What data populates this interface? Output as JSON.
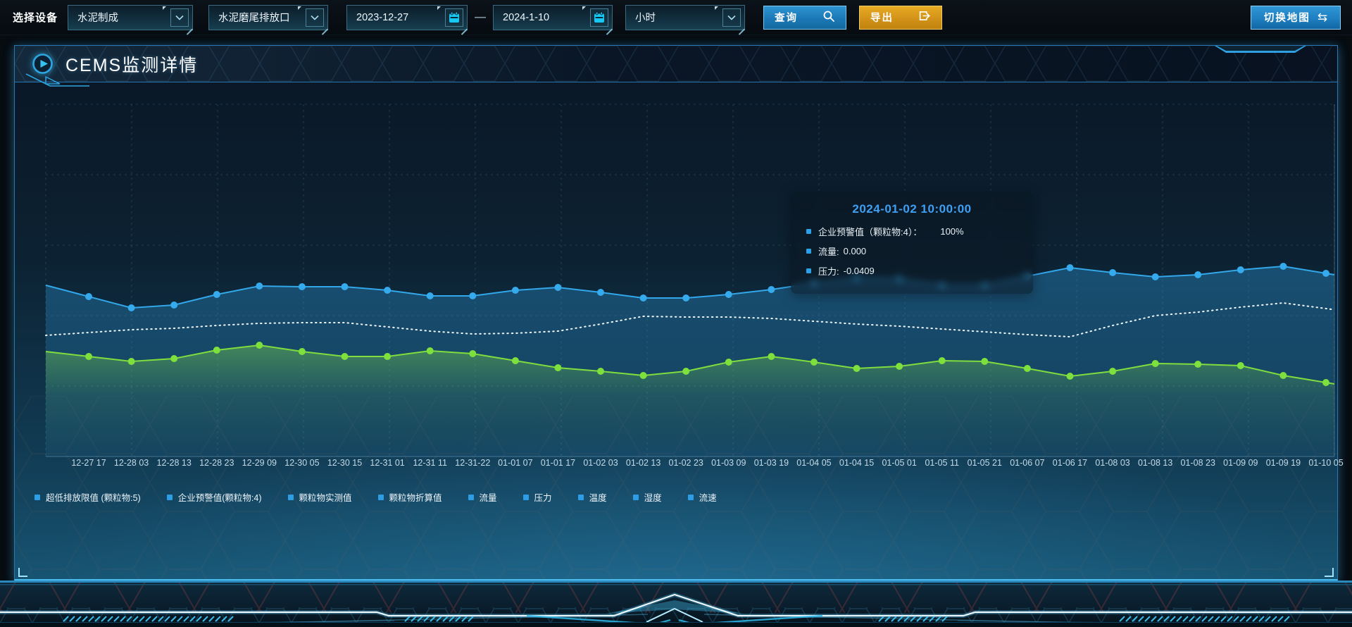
{
  "toolbar": {
    "device_label": "选择设备",
    "device_type_select": {
      "value": "水泥制成"
    },
    "outlet_select": {
      "value": "水泥磨尾排放口"
    },
    "date_from": "2023-12-27",
    "date_separator": "—",
    "date_to": "2024-1-10",
    "interval_select": {
      "value": "小时"
    },
    "query_button": "查询",
    "export_button": "导出",
    "switch_map_button": "切换地图"
  },
  "panel": {
    "title": "CEMS监测详情"
  },
  "tooltip": {
    "title": "2024-01-02 10:00:00",
    "rows": [
      {
        "label": "企业预警值（颗粒物:4）：",
        "value": "100%"
      },
      {
        "label": "流量:",
        "value": "0.000"
      },
      {
        "label": "压力:",
        "value": "-0.0409"
      }
    ]
  },
  "legend": [
    "超低排放限值 (颗粒物:5)",
    "企业预警值(颗粒物:4)",
    "颗粒物实测值",
    "颗粒物折算值",
    "流量",
    "压力",
    "温度",
    "湿度",
    "流速"
  ],
  "icons": {
    "chevron-down": "∨",
    "swap-arrows": "⇆",
    "calendar": "cyan calendar glyph",
    "search": "magnifier glyph",
    "export": "box with right arrow glyph",
    "play": "circled play triangle"
  },
  "colors": {
    "series_blue": "#32a7ea",
    "series_green": "#7fdd3e",
    "series_white_dotted": "#eef6fa",
    "legend_marker": "#2d9ee6",
    "tooltip_title_blue": "#3f9ff2",
    "query_button_blue": "#1b78b6",
    "export_button_orange": "#d3931a",
    "panel_border": "#2877b4"
  },
  "chart_data": {
    "type": "line",
    "title": "",
    "xlabel": "",
    "ylabel": "",
    "y_axis_note": "no visible y tick labels; series values estimated as percent of plot height from bottom",
    "grid": "dashed",
    "legend_position": "bottom",
    "x_labels": [
      "12-27 17",
      "12-28 03",
      "12-28 13",
      "12-28 23",
      "12-29 09",
      "12-30 05",
      "12-30 15",
      "12-31 01",
      "12-31 11",
      "12-31-22",
      "01-01 07",
      "01-01 17",
      "01-02 03",
      "01-02 13",
      "01-02 23",
      "01-03 09",
      "01-03 19",
      "01-04 05",
      "01-04 15",
      "01-05 01",
      "01-05 11",
      "01-05 21",
      "01-06 07",
      "01-06 17",
      "01-08 03",
      "01-08 13",
      "01-08 23",
      "01-09 09",
      "01-09 19",
      "01-10 05"
    ],
    "series": [
      {
        "name": "series-blue-solid",
        "color": "#32a7ea",
        "marker": "circle",
        "line_style": "solid",
        "area_fill": true,
        "values_pct": [
          45.4,
          42.2,
          43,
          46,
          48.4,
          48.2,
          48.2,
          47.2,
          45.6,
          45.6,
          47.2,
          48,
          46.6,
          45,
          45,
          46,
          47.4,
          49.2,
          50.6,
          50.4,
          48.6,
          48.6,
          51.2,
          53.6,
          52.2,
          51,
          51.6,
          53,
          54,
          52
        ]
      },
      {
        "name": "series-white-dotted",
        "color": "#eef6fa",
        "marker": "none",
        "line_style": "dotted",
        "area_fill": false,
        "values_pct": [
          35.2,
          36,
          36.4,
          37.2,
          37.8,
          38,
          38,
          36.8,
          35.6,
          34.8,
          35,
          35.6,
          37.6,
          39.8,
          39.6,
          39.6,
          39.2,
          38.4,
          37.6,
          37,
          36.2,
          35.4,
          34.6,
          34,
          37.2,
          40,
          41,
          42.4,
          43.6,
          42
        ]
      },
      {
        "name": "series-green-solid",
        "color": "#7fdd3e",
        "marker": "circle",
        "line_style": "solid",
        "area_fill": true,
        "values_pct": [
          28.4,
          27,
          27.8,
          30.2,
          31.6,
          29.8,
          28.4,
          28.4,
          30,
          29.2,
          27.2,
          25.2,
          24.2,
          23,
          24.2,
          26.8,
          28.4,
          26.8,
          25,
          25.6,
          27.2,
          27,
          25,
          22.8,
          24.2,
          26.4,
          26.2,
          25.8,
          23,
          21
        ]
      }
    ]
  }
}
